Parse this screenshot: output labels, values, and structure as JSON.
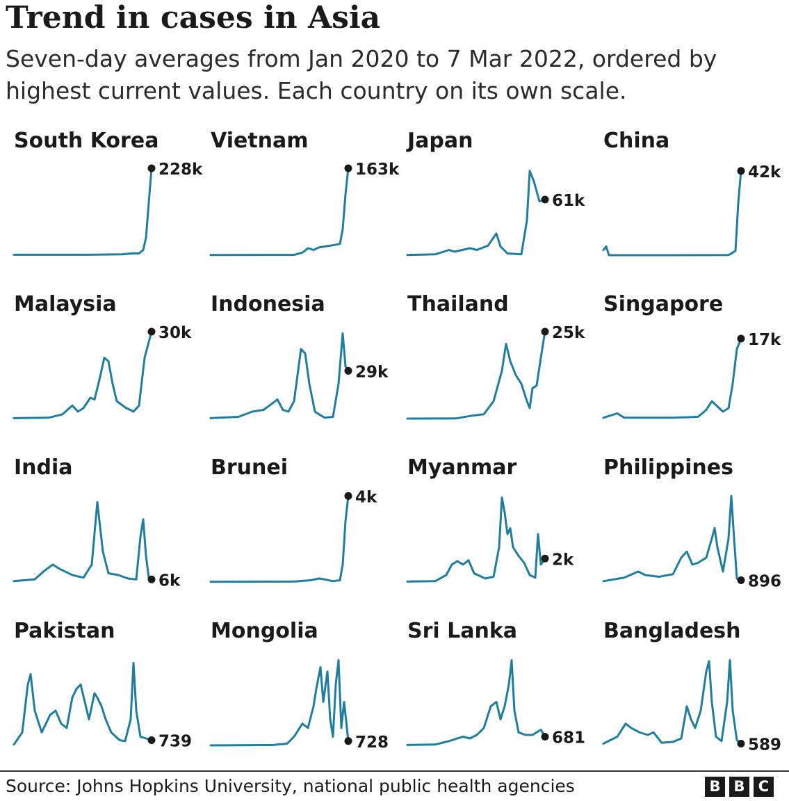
{
  "header": {
    "title": "Trend in cases in Asia",
    "subtitle": "Seven-day averages from Jan 2020 to 7 Mar 2022, ordered by highest current values. Each country on its own scale."
  },
  "footer": {
    "source": "Source: Johns Hopkins University, national public health agencies",
    "logo_letters": [
      "B",
      "B",
      "C"
    ]
  },
  "colors": {
    "line": "#1f7d9d",
    "dot": "#1a1a1a",
    "text": "#1a1a1a"
  },
  "chart_data": {
    "type": "line",
    "title": "Trend in cases in Asia",
    "subtitle": "Seven-day averages from Jan 2020 to 7 Mar 2022, ordered by highest current values. Each country on its own scale.",
    "x_range": [
      "2020-01",
      "2022-03-07"
    ],
    "grid": false,
    "panels": [
      {
        "name": "South Korea",
        "current_label": "228k",
        "current": 228000,
        "points": [
          [
            0,
            0.005
          ],
          [
            0.5,
            0.005
          ],
          [
            0.78,
            0.01
          ],
          [
            0.85,
            0.02
          ],
          [
            0.9,
            0.02
          ],
          [
            0.93,
            0.06
          ],
          [
            0.95,
            0.2
          ],
          [
            0.97,
            0.6
          ],
          [
            0.99,
            1.0
          ]
        ]
      },
      {
        "name": "Vietnam",
        "current_label": "163k",
        "current": 163000,
        "points": [
          [
            0,
            0.002
          ],
          [
            0.6,
            0.003
          ],
          [
            0.66,
            0.03
          ],
          [
            0.7,
            0.08
          ],
          [
            0.74,
            0.06
          ],
          [
            0.78,
            0.09
          ],
          [
            0.82,
            0.1
          ],
          [
            0.86,
            0.11
          ],
          [
            0.9,
            0.12
          ],
          [
            0.93,
            0.13
          ],
          [
            0.95,
            0.3
          ],
          [
            0.97,
            0.7
          ],
          [
            0.99,
            1.0
          ]
        ]
      },
      {
        "name": "Japan",
        "current_label": "61k",
        "current": 61000,
        "points": [
          [
            0,
            0.002
          ],
          [
            0.2,
            0.01
          ],
          [
            0.3,
            0.06
          ],
          [
            0.34,
            0.04
          ],
          [
            0.45,
            0.08
          ],
          [
            0.5,
            0.06
          ],
          [
            0.58,
            0.11
          ],
          [
            0.64,
            0.25
          ],
          [
            0.67,
            0.1
          ],
          [
            0.72,
            0.02
          ],
          [
            0.82,
            0.01
          ],
          [
            0.86,
            0.4
          ],
          [
            0.88,
            0.97
          ],
          [
            0.91,
            0.85
          ],
          [
            0.95,
            0.62
          ],
          [
            0.99,
            0.64
          ]
        ]
      },
      {
        "name": "China",
        "current_label": "42k",
        "current": 42000,
        "points": [
          [
            0,
            0.06
          ],
          [
            0.02,
            0.1
          ],
          [
            0.04,
            0.0
          ],
          [
            0.5,
            0.0
          ],
          [
            0.9,
            0.002
          ],
          [
            0.95,
            0.05
          ],
          [
            0.97,
            0.6
          ],
          [
            0.99,
            0.97
          ]
        ]
      },
      {
        "name": "Malaysia",
        "current_label": "30k",
        "current": 30000,
        "points": [
          [
            0,
            0.005
          ],
          [
            0.25,
            0.01
          ],
          [
            0.35,
            0.05
          ],
          [
            0.42,
            0.15
          ],
          [
            0.46,
            0.08
          ],
          [
            0.5,
            0.12
          ],
          [
            0.55,
            0.24
          ],
          [
            0.58,
            0.22
          ],
          [
            0.62,
            0.48
          ],
          [
            0.65,
            0.7
          ],
          [
            0.68,
            0.66
          ],
          [
            0.71,
            0.4
          ],
          [
            0.74,
            0.2
          ],
          [
            0.8,
            0.13
          ],
          [
            0.86,
            0.08
          ],
          [
            0.9,
            0.15
          ],
          [
            0.94,
            0.7
          ],
          [
            0.99,
            1.0
          ]
        ]
      },
      {
        "name": "Indonesia",
        "current_label": "29k",
        "current": 29000,
        "points": [
          [
            0,
            0.005
          ],
          [
            0.2,
            0.02
          ],
          [
            0.3,
            0.08
          ],
          [
            0.38,
            0.1
          ],
          [
            0.44,
            0.17
          ],
          [
            0.48,
            0.22
          ],
          [
            0.52,
            0.1
          ],
          [
            0.56,
            0.08
          ],
          [
            0.6,
            0.2
          ],
          [
            0.65,
            0.8
          ],
          [
            0.68,
            0.75
          ],
          [
            0.71,
            0.4
          ],
          [
            0.75,
            0.08
          ],
          [
            0.82,
            0.01
          ],
          [
            0.88,
            0.02
          ],
          [
            0.92,
            0.4
          ],
          [
            0.95,
            0.98
          ],
          [
            0.97,
            0.6
          ],
          [
            0.99,
            0.55
          ]
        ]
      },
      {
        "name": "Thailand",
        "current_label": "25k",
        "current": 25000,
        "points": [
          [
            0,
            0.0
          ],
          [
            0.35,
            0.002
          ],
          [
            0.45,
            0.03
          ],
          [
            0.55,
            0.05
          ],
          [
            0.62,
            0.2
          ],
          [
            0.68,
            0.55
          ],
          [
            0.71,
            0.86
          ],
          [
            0.74,
            0.66
          ],
          [
            0.78,
            0.5
          ],
          [
            0.82,
            0.4
          ],
          [
            0.86,
            0.2
          ],
          [
            0.88,
            0.12
          ],
          [
            0.9,
            0.35
          ],
          [
            0.93,
            0.38
          ],
          [
            0.96,
            0.7
          ],
          [
            0.99,
            1.0
          ]
        ]
      },
      {
        "name": "Singapore",
        "current_label": "17k",
        "current": 17000,
        "points": [
          [
            0,
            0.01
          ],
          [
            0.1,
            0.06
          ],
          [
            0.15,
            0.01
          ],
          [
            0.5,
            0.01
          ],
          [
            0.68,
            0.02
          ],
          [
            0.74,
            0.1
          ],
          [
            0.78,
            0.2
          ],
          [
            0.82,
            0.14
          ],
          [
            0.86,
            0.08
          ],
          [
            0.9,
            0.12
          ],
          [
            0.93,
            0.4
          ],
          [
            0.96,
            0.8
          ],
          [
            0.99,
            0.92
          ]
        ]
      },
      {
        "name": "India",
        "current_label": "6k",
        "current": 6000,
        "points": [
          [
            0,
            0.01
          ],
          [
            0.15,
            0.03
          ],
          [
            0.22,
            0.13
          ],
          [
            0.28,
            0.2
          ],
          [
            0.33,
            0.15
          ],
          [
            0.42,
            0.08
          ],
          [
            0.5,
            0.05
          ],
          [
            0.56,
            0.2
          ],
          [
            0.6,
            0.92
          ],
          [
            0.64,
            0.35
          ],
          [
            0.68,
            0.1
          ],
          [
            0.75,
            0.08
          ],
          [
            0.82,
            0.04
          ],
          [
            0.88,
            0.03
          ],
          [
            0.91,
            0.52
          ],
          [
            0.93,
            0.72
          ],
          [
            0.95,
            0.3
          ],
          [
            0.97,
            0.05
          ],
          [
            0.99,
            0.03
          ]
        ]
      },
      {
        "name": "Brunei",
        "current_label": "4k",
        "current": 4000,
        "points": [
          [
            0,
            0.002
          ],
          [
            0.6,
            0.005
          ],
          [
            0.72,
            0.02
          ],
          [
            0.78,
            0.04
          ],
          [
            0.82,
            0.03
          ],
          [
            0.88,
            0.01
          ],
          [
            0.93,
            0.02
          ],
          [
            0.95,
            0.2
          ],
          [
            0.97,
            0.7
          ],
          [
            0.99,
            0.99
          ]
        ]
      },
      {
        "name": "Myanmar",
        "current_label": "2k",
        "current": 2000,
        "points": [
          [
            0,
            0.005
          ],
          [
            0.2,
            0.01
          ],
          [
            0.28,
            0.08
          ],
          [
            0.32,
            0.2
          ],
          [
            0.36,
            0.24
          ],
          [
            0.4,
            0.2
          ],
          [
            0.44,
            0.25
          ],
          [
            0.48,
            0.1
          ],
          [
            0.56,
            0.04
          ],
          [
            0.62,
            0.06
          ],
          [
            0.66,
            0.4
          ],
          [
            0.68,
            0.97
          ],
          [
            0.7,
            0.8
          ],
          [
            0.72,
            0.55
          ],
          [
            0.74,
            0.62
          ],
          [
            0.76,
            0.4
          ],
          [
            0.8,
            0.3
          ],
          [
            0.84,
            0.22
          ],
          [
            0.88,
            0.08
          ],
          [
            0.92,
            0.05
          ],
          [
            0.94,
            0.55
          ],
          [
            0.96,
            0.2
          ],
          [
            0.99,
            0.27
          ]
        ]
      },
      {
        "name": "Philippines",
        "current_label": "896",
        "current": 896,
        "points": [
          [
            0,
            0.01
          ],
          [
            0.15,
            0.05
          ],
          [
            0.25,
            0.12
          ],
          [
            0.3,
            0.08
          ],
          [
            0.4,
            0.06
          ],
          [
            0.5,
            0.09
          ],
          [
            0.56,
            0.28
          ],
          [
            0.6,
            0.35
          ],
          [
            0.64,
            0.2
          ],
          [
            0.68,
            0.22
          ],
          [
            0.74,
            0.28
          ],
          [
            0.78,
            0.5
          ],
          [
            0.8,
            0.62
          ],
          [
            0.82,
            0.4
          ],
          [
            0.86,
            0.12
          ],
          [
            0.9,
            0.5
          ],
          [
            0.92,
            0.99
          ],
          [
            0.94,
            0.5
          ],
          [
            0.96,
            0.04
          ],
          [
            0.99,
            0.02
          ]
        ]
      },
      {
        "name": "Pakistan",
        "current_label": "739",
        "current": 739,
        "points": [
          [
            0,
            0.01
          ],
          [
            0.06,
            0.15
          ],
          [
            0.1,
            0.7
          ],
          [
            0.12,
            0.82
          ],
          [
            0.15,
            0.4
          ],
          [
            0.2,
            0.15
          ],
          [
            0.26,
            0.35
          ],
          [
            0.3,
            0.4
          ],
          [
            0.34,
            0.25
          ],
          [
            0.38,
            0.2
          ],
          [
            0.42,
            0.55
          ],
          [
            0.45,
            0.65
          ],
          [
            0.48,
            0.7
          ],
          [
            0.51,
            0.5
          ],
          [
            0.54,
            0.3
          ],
          [
            0.58,
            0.6
          ],
          [
            0.6,
            0.55
          ],
          [
            0.63,
            0.45
          ],
          [
            0.66,
            0.3
          ],
          [
            0.7,
            0.15
          ],
          [
            0.76,
            0.06
          ],
          [
            0.8,
            0.05
          ],
          [
            0.84,
            0.3
          ],
          [
            0.86,
            0.95
          ],
          [
            0.88,
            0.4
          ],
          [
            0.91,
            0.1
          ],
          [
            0.95,
            0.08
          ],
          [
            0.99,
            0.06
          ]
        ]
      },
      {
        "name": "Mongolia",
        "current_label": "728",
        "current": 728,
        "points": [
          [
            0,
            0.0
          ],
          [
            0.45,
            0.005
          ],
          [
            0.55,
            0.02
          ],
          [
            0.6,
            0.1
          ],
          [
            0.66,
            0.25
          ],
          [
            0.7,
            0.2
          ],
          [
            0.74,
            0.45
          ],
          [
            0.76,
            0.65
          ],
          [
            0.79,
            0.9
          ],
          [
            0.81,
            0.5
          ],
          [
            0.84,
            0.85
          ],
          [
            0.86,
            0.3
          ],
          [
            0.88,
            0.1
          ],
          [
            0.9,
            0.7
          ],
          [
            0.92,
            0.98
          ],
          [
            0.94,
            0.2
          ],
          [
            0.96,
            0.5
          ],
          [
            0.99,
            0.05
          ]
        ]
      },
      {
        "name": "Sri Lanka",
        "current_label": "681",
        "current": 681,
        "points": [
          [
            0,
            0.005
          ],
          [
            0.2,
            0.01
          ],
          [
            0.3,
            0.05
          ],
          [
            0.4,
            0.1
          ],
          [
            0.45,
            0.08
          ],
          [
            0.5,
            0.12
          ],
          [
            0.55,
            0.2
          ],
          [
            0.6,
            0.45
          ],
          [
            0.64,
            0.5
          ],
          [
            0.67,
            0.3
          ],
          [
            0.7,
            0.45
          ],
          [
            0.73,
            0.7
          ],
          [
            0.75,
            0.98
          ],
          [
            0.77,
            0.4
          ],
          [
            0.8,
            0.15
          ],
          [
            0.85,
            0.12
          ],
          [
            0.9,
            0.12
          ],
          [
            0.93,
            0.15
          ],
          [
            0.96,
            0.18
          ],
          [
            0.99,
            0.1
          ]
        ]
      },
      {
        "name": "Bangladesh",
        "current_label": "589",
        "current": 589,
        "points": [
          [
            0,
            0.02
          ],
          [
            0.1,
            0.1
          ],
          [
            0.16,
            0.25
          ],
          [
            0.2,
            0.2
          ],
          [
            0.26,
            0.15
          ],
          [
            0.32,
            0.12
          ],
          [
            0.36,
            0.15
          ],
          [
            0.42,
            0.03
          ],
          [
            0.5,
            0.04
          ],
          [
            0.56,
            0.08
          ],
          [
            0.6,
            0.45
          ],
          [
            0.63,
            0.3
          ],
          [
            0.66,
            0.2
          ],
          [
            0.7,
            0.4
          ],
          [
            0.74,
            0.85
          ],
          [
            0.76,
            0.97
          ],
          [
            0.78,
            0.5
          ],
          [
            0.81,
            0.1
          ],
          [
            0.85,
            0.05
          ],
          [
            0.89,
            0.5
          ],
          [
            0.91,
            0.98
          ],
          [
            0.93,
            0.4
          ],
          [
            0.96,
            0.06
          ],
          [
            0.99,
            0.02
          ]
        ]
      }
    ]
  }
}
